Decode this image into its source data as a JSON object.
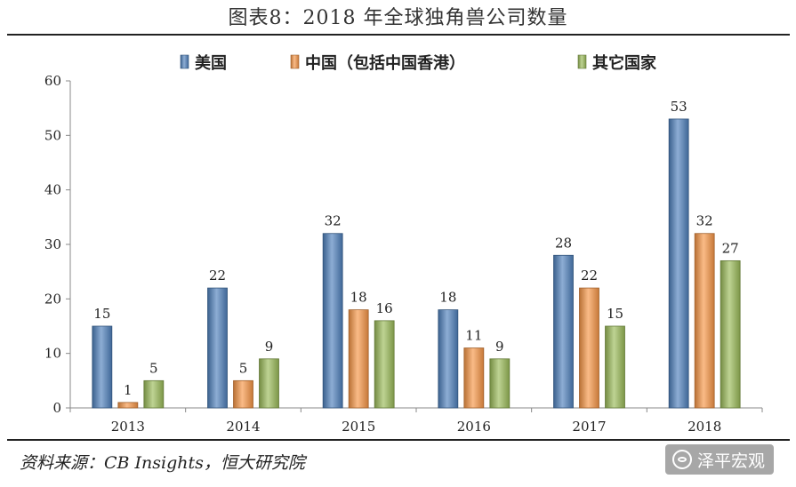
{
  "figure_title": "图表8：2018 年全球独角兽公司数量",
  "source": "资料来源：CB Insights，恒大研究院",
  "watermark": "泽平宏观",
  "chart_data": {
    "type": "bar",
    "categories": [
      "2013",
      "2014",
      "2015",
      "2016",
      "2017",
      "2018"
    ],
    "series": [
      {
        "name": "美国",
        "values": [
          15,
          22,
          32,
          18,
          28,
          53
        ],
        "color": "#4F81BD"
      },
      {
        "name": "中国（包括中国香港）",
        "values": [
          1,
          5,
          18,
          11,
          22,
          32
        ],
        "color": "#F79646"
      },
      {
        "name": "其它国家",
        "values": [
          5,
          9,
          16,
          9,
          15,
          27
        ],
        "color": "#9BBB59"
      }
    ],
    "ylim": [
      0,
      60
    ],
    "yticks": [
      0,
      10,
      20,
      30,
      40,
      50,
      60
    ],
    "legend": "top",
    "grid": false,
    "data_labels": true
  }
}
